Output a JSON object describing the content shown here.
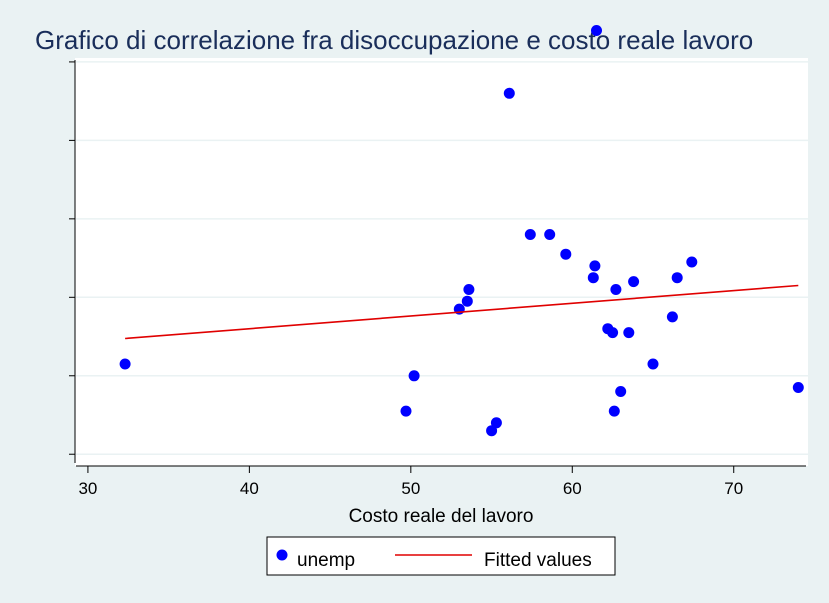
{
  "chart_data": {
    "type": "scatter",
    "title": "Grafico di correlazione fra disoccupazione e costo reale lavoro",
    "xlabel": "Costo reale del lavoro",
    "ylabel": "",
    "xlim": [
      29.2,
      74.6
    ],
    "ylim": [
      0.2,
      10.6
    ],
    "x_ticks": [
      30,
      40,
      50,
      60,
      70
    ],
    "y_ticks": [
      0.5,
      2.5,
      4.5,
      6.5,
      8.5,
      10.5
    ],
    "grid": true,
    "legend_position": "bottom",
    "series": [
      {
        "name": "unemp",
        "kind": "scatter",
        "color": "#0000ff",
        "points": [
          [
            32.3,
            2.8
          ],
          [
            49.7,
            1.6
          ],
          [
            50.2,
            2.5
          ],
          [
            53.0,
            4.2
          ],
          [
            53.5,
            4.4
          ],
          [
            53.6,
            4.7
          ],
          [
            55.0,
            1.1
          ],
          [
            55.3,
            1.3
          ],
          [
            56.1,
            9.7
          ],
          [
            57.4,
            6.1
          ],
          [
            58.6,
            6.1
          ],
          [
            59.6,
            5.6
          ],
          [
            61.3,
            5.0
          ],
          [
            61.4,
            5.3
          ],
          [
            61.5,
            11.3
          ],
          [
            62.2,
            3.7
          ],
          [
            62.5,
            3.6
          ],
          [
            62.6,
            1.6
          ],
          [
            62.7,
            4.7
          ],
          [
            63.0,
            2.1
          ],
          [
            63.5,
            3.6
          ],
          [
            63.8,
            4.9
          ],
          [
            65.0,
            2.8
          ],
          [
            66.2,
            4.0
          ],
          [
            66.5,
            5.0
          ],
          [
            67.4,
            5.4
          ],
          [
            74.0,
            2.2
          ]
        ]
      },
      {
        "name": "Fitted values",
        "kind": "line",
        "color": "#e00000",
        "points": [
          [
            32.3,
            3.45
          ],
          [
            74.0,
            4.8
          ]
        ]
      }
    ]
  }
}
